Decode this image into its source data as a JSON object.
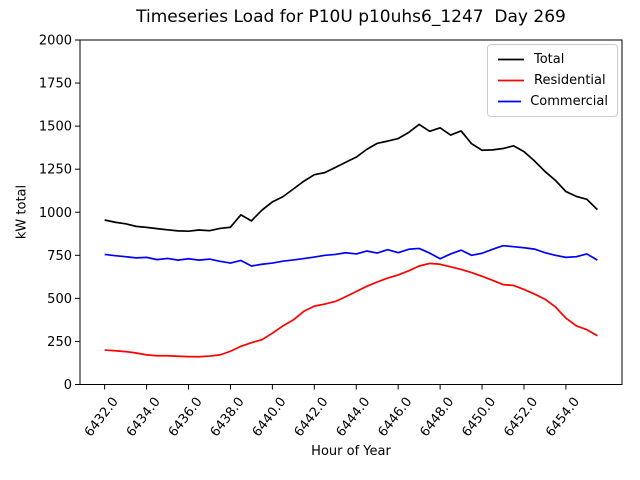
{
  "figure": {
    "title": "Timeseries Load for P10U p10uhs6_1247  Day 269",
    "xlabel": "Hour of Year",
    "ylabel": "kW total"
  },
  "legend": {
    "position": "upper right",
    "entries": [
      {
        "label": "Total",
        "color": "#000000"
      },
      {
        "label": "Residential",
        "color": "#ff0000"
      },
      {
        "label": "Commercial",
        "color": "#0000ff"
      }
    ]
  },
  "chart_data": {
    "type": "line",
    "title": "Timeseries Load for P10U p10uhs6_1247  Day 269",
    "xlabel": "Hour of Year",
    "ylabel": "kW total",
    "grid": false,
    "legend_position": "upper right",
    "xlim": [
      6430.825,
      6456.675
    ],
    "ylim": [
      0,
      2000
    ],
    "xticks": [
      6432,
      6434,
      6436,
      6438,
      6440,
      6442,
      6444,
      6446,
      6448,
      6450,
      6452,
      6454
    ],
    "xtick_labels": [
      "6432.0",
      "6434.0",
      "6436.0",
      "6438.0",
      "6440.0",
      "6442.0",
      "6444.0",
      "6446.0",
      "6448.0",
      "6450.0",
      "6452.0",
      "6454.0"
    ],
    "yticks": [
      0,
      250,
      500,
      750,
      1000,
      1250,
      1500,
      1750,
      2000
    ],
    "x": [
      6432.0,
      6432.5,
      6433.0,
      6433.5,
      6434.0,
      6434.5,
      6435.0,
      6435.5,
      6436.0,
      6436.5,
      6437.0,
      6437.5,
      6438.0,
      6438.5,
      6439.0,
      6439.5,
      6440.0,
      6440.5,
      6441.0,
      6441.5,
      6442.0,
      6442.5,
      6443.0,
      6443.5,
      6444.0,
      6444.5,
      6445.0,
      6445.5,
      6446.0,
      6446.5,
      6447.0,
      6447.5,
      6448.0,
      6448.5,
      6449.0,
      6449.5,
      6450.0,
      6450.5,
      6451.0,
      6451.5,
      6452.0,
      6452.5,
      6453.0,
      6453.5,
      6454.0,
      6454.5,
      6455.0,
      6455.5
    ],
    "series": [
      {
        "name": "Total",
        "color": "#000000",
        "values": [
          955,
          942,
          933,
          918,
          912,
          905,
          898,
          892,
          890,
          897,
          893,
          906,
          913,
          985,
          950,
          1012,
          1060,
          1090,
          1135,
          1180,
          1218,
          1230,
          1260,
          1290,
          1320,
          1365,
          1400,
          1413,
          1428,
          1463,
          1510,
          1470,
          1490,
          1448,
          1472,
          1398,
          1360,
          1362,
          1370,
          1386,
          1352,
          1298,
          1237,
          1185,
          1120,
          1092,
          1075,
          1015
        ]
      },
      {
        "name": "Residential",
        "color": "#ff0000",
        "values": [
          200,
          196,
          191,
          183,
          172,
          167,
          167,
          164,
          162,
          161,
          165,
          172,
          193,
          222,
          243,
          260,
          298,
          340,
          375,
          425,
          455,
          467,
          482,
          510,
          540,
          570,
          595,
          618,
          636,
          660,
          688,
          703,
          698,
          683,
          668,
          650,
          628,
          605,
          580,
          575,
          552,
          525,
          495,
          450,
          385,
          340,
          318,
          283
        ]
      },
      {
        "name": "Commercial",
        "color": "#0000ff",
        "values": [
          755,
          748,
          742,
          735,
          738,
          725,
          732,
          722,
          730,
          722,
          728,
          715,
          705,
          720,
          688,
          698,
          705,
          716,
          723,
          731,
          740,
          750,
          755,
          765,
          758,
          775,
          763,
          783,
          765,
          785,
          790,
          763,
          730,
          758,
          780,
          750,
          762,
          785,
          806,
          800,
          794,
          786,
          765,
          750,
          738,
          742,
          758,
          722
        ]
      }
    ]
  }
}
